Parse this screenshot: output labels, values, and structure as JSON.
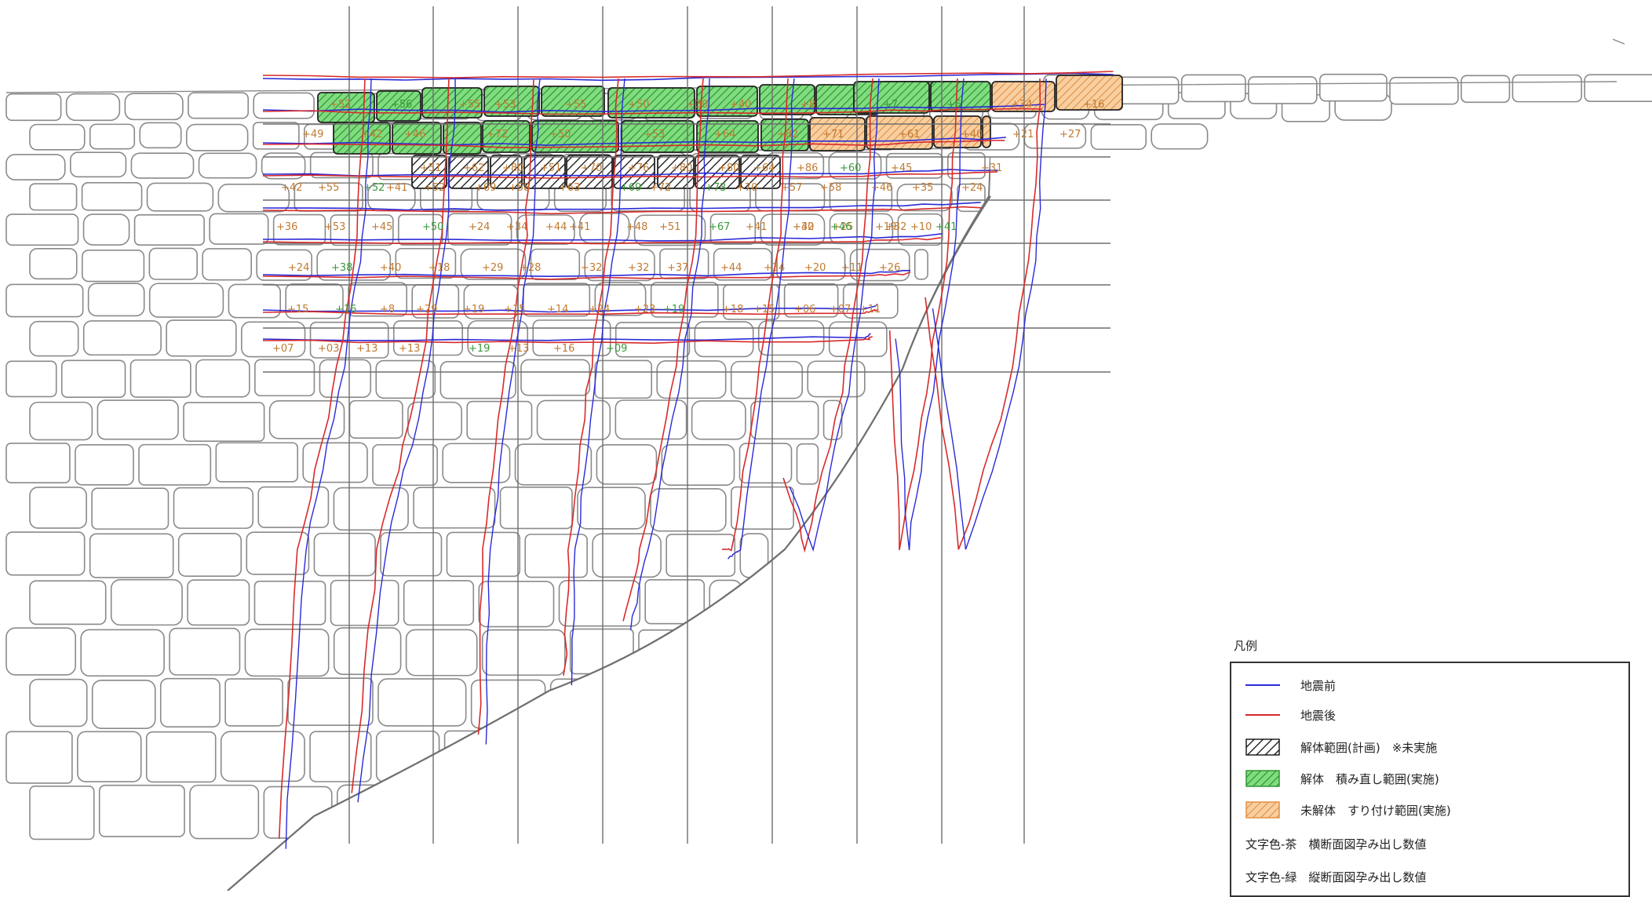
{
  "legend": {
    "title": "凡例",
    "items": [
      {
        "kind": "line",
        "color": "#2a2ad8",
        "label": "地震前"
      },
      {
        "kind": "line",
        "color": "#d82a2a",
        "label": "地震後"
      },
      {
        "kind": "hatch",
        "pattern": "black",
        "label": "解体範囲(計画)　※未実施"
      },
      {
        "kind": "hatch",
        "pattern": "green",
        "label": "解体　積み直し範囲(実施)"
      },
      {
        "kind": "hatch",
        "pattern": "orange",
        "label": "未解体　すり付け範囲(実施)"
      },
      {
        "kind": "text",
        "label": "文字色-茶　横断面図孕み出し数値"
      },
      {
        "kind": "text",
        "label": "文字色-緑　縦断面図孕み出し数値"
      }
    ]
  },
  "colors": {
    "stone_outline": "#8a8a8a",
    "grid": "#6e6e6e",
    "before": "#2a2ad8",
    "after": "#d82a2a",
    "brown_text": "#c07a30",
    "green_text": "#3a9a3a",
    "green_fill": "#3fbf3f",
    "orange_fill": "#f0a050"
  },
  "row1_labels": [
    {
      "t": "+52",
      "c": "b"
    },
    {
      "t": "+56",
      "c": "g"
    },
    {
      "t": "+55",
      "c": "b"
    },
    {
      "t": "+53",
      "c": "b"
    },
    {
      "t": "+55",
      "c": "b"
    },
    {
      "t": "+50",
      "c": "b"
    },
    {
      "t": "+30",
      "c": "b"
    },
    {
      "t": "+40",
      "c": "b"
    },
    {
      "t": "+8",
      "c": "b"
    },
    {
      "t": "+7",
      "c": "g"
    },
    {
      "t": "+6",
      "c": "g"
    },
    {
      "t": "+34",
      "c": "b"
    },
    {
      "t": "+16",
      "c": "b"
    }
  ],
  "row2_labels": [
    {
      "t": "+49",
      "c": "b"
    },
    {
      "t": "+42",
      "c": "b"
    },
    {
      "t": "+46",
      "c": "b"
    },
    {
      "t": "+72",
      "c": "b"
    },
    {
      "t": "+50",
      "c": "b"
    },
    {
      "t": "+53",
      "c": "b"
    },
    {
      "t": "+64",
      "c": "b"
    },
    {
      "t": "+82",
      "c": "b"
    },
    {
      "t": "+71",
      "c": "b"
    },
    {
      "t": "+61",
      "c": "b"
    },
    {
      "t": "+40",
      "c": "b"
    },
    {
      "t": "+21",
      "c": "b"
    },
    {
      "t": "+27",
      "c": "b"
    }
  ],
  "row3_labels": [
    {
      "t": "+51",
      "c": "b"
    },
    {
      "t": "+62",
      "c": "b"
    },
    {
      "t": "+80",
      "c": "b"
    },
    {
      "t": "+51",
      "c": "b"
    },
    {
      "t": "+70",
      "c": "b"
    },
    {
      "t": "+76",
      "c": "b"
    },
    {
      "t": "+80",
      "c": "b"
    },
    {
      "t": "+80",
      "c": "b"
    },
    {
      "t": "+64",
      "c": "b"
    },
    {
      "t": "+86",
      "c": "b"
    },
    {
      "t": "+60",
      "c": "g"
    },
    {
      "t": "+45",
      "c": "b"
    },
    {
      "t": "+31",
      "c": "b"
    }
  ],
  "row4_labels": [
    {
      "t": "+42",
      "c": "b"
    },
    {
      "t": "+55",
      "c": "b"
    },
    {
      "t": "+52",
      "c": "g"
    },
    {
      "t": "+41",
      "c": "b"
    },
    {
      "t": "+52",
      "c": "b"
    },
    {
      "t": "+69",
      "c": "b"
    },
    {
      "t": "+58",
      "c": "b"
    },
    {
      "t": "+63",
      "c": "b"
    },
    {
      "t": "+69",
      "c": "g"
    },
    {
      "t": "+72",
      "c": "b"
    },
    {
      "t": "+73",
      "c": "g"
    },
    {
      "t": "+70",
      "c": "b"
    },
    {
      "t": "+57",
      "c": "b"
    },
    {
      "t": "+58",
      "c": "b"
    },
    {
      "t": "+46",
      "c": "b"
    },
    {
      "t": "+35",
      "c": "b"
    },
    {
      "t": "+24",
      "c": "b"
    }
  ],
  "row5_labels": [
    {
      "t": "+36",
      "c": "b"
    },
    {
      "t": "+53",
      "c": "b"
    },
    {
      "t": "+45",
      "c": "b"
    },
    {
      "t": "+50",
      "c": "g"
    },
    {
      "t": "+24",
      "c": "b"
    },
    {
      "t": "+34",
      "c": "b"
    },
    {
      "t": "+44",
      "c": "b"
    },
    {
      "t": "+41",
      "c": "b"
    },
    {
      "t": "+48",
      "c": "b"
    },
    {
      "t": "+51",
      "c": "b"
    },
    {
      "t": "+67",
      "c": "g"
    },
    {
      "t": "+41",
      "c": "b"
    },
    {
      "t": "+30",
      "c": "b"
    },
    {
      "t": "+25",
      "c": "b"
    },
    {
      "t": "+19",
      "c": "b"
    },
    {
      "t": "+46",
      "c": "g"
    },
    {
      "t": "+32",
      "c": "b"
    },
    {
      "t": "+41",
      "c": "g"
    },
    {
      "t": "+42",
      "c": "b"
    },
    {
      "t": "+10",
      "c": "b"
    }
  ],
  "row6_labels": [
    {
      "t": "+24",
      "c": "b"
    },
    {
      "t": "+38",
      "c": "g"
    },
    {
      "t": "+40",
      "c": "b"
    },
    {
      "t": "+18",
      "c": "b"
    },
    {
      "t": "+29",
      "c": "b"
    },
    {
      "t": "+28",
      "c": "b"
    },
    {
      "t": "+32",
      "c": "b"
    },
    {
      "t": "+32",
      "c": "b"
    },
    {
      "t": "+37",
      "c": "b"
    },
    {
      "t": "+44",
      "c": "b"
    },
    {
      "t": "+34",
      "c": "b"
    },
    {
      "t": "+20",
      "c": "b"
    },
    {
      "t": "+11",
      "c": "b"
    },
    {
      "t": "+26",
      "c": "b"
    }
  ],
  "row7_labels": [
    {
      "t": "+15",
      "c": "b"
    },
    {
      "t": "+16",
      "c": "g"
    },
    {
      "t": "+8",
      "c": "b"
    },
    {
      "t": "+29",
      "c": "b"
    },
    {
      "t": "+19",
      "c": "b"
    },
    {
      "t": "+15",
      "c": "b"
    },
    {
      "t": "+14",
      "c": "b"
    },
    {
      "t": "+24",
      "c": "b"
    },
    {
      "t": "+23",
      "c": "b"
    },
    {
      "t": "+19",
      "c": "g"
    },
    {
      "t": "+18",
      "c": "b"
    },
    {
      "t": "+15",
      "c": "b"
    },
    {
      "t": "+06",
      "c": "b"
    },
    {
      "t": "+07",
      "c": "b"
    },
    {
      "t": "+11",
      "c": "b"
    }
  ],
  "row8_labels": [
    {
      "t": "+07",
      "c": "b"
    },
    {
      "t": "+03",
      "c": "b"
    },
    {
      "t": "+13",
      "c": "b"
    },
    {
      "t": "+13",
      "c": "b"
    },
    {
      "t": "+19",
      "c": "g"
    },
    {
      "t": "+13",
      "c": "b"
    },
    {
      "t": "+16",
      "c": "b"
    },
    {
      "t": "+09",
      "c": "g"
    }
  ]
}
